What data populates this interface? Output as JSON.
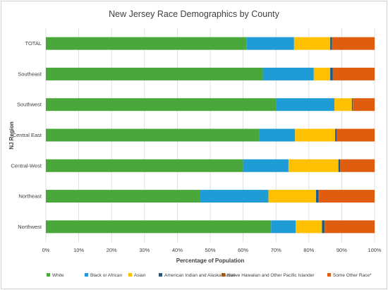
{
  "chart_data": {
    "type": "bar",
    "orientation": "horizontal",
    "stacked": true,
    "title": "New Jersey Race Demographics by County",
    "xlabel": "Percentage of Population",
    "ylabel": "NJ Region",
    "xlim": [
      0,
      100
    ],
    "x_ticks": [
      "0%",
      "10%",
      "20%",
      "30%",
      "40%",
      "50%",
      "60%",
      "70%",
      "80%",
      "90%",
      "100%"
    ],
    "grid": "vertical",
    "legend_position": "bottom",
    "categories": [
      "TOTAL",
      "Southeast",
      "Southwest",
      "Central East",
      "Central-West",
      "Northeast",
      "Northwest"
    ],
    "series": [
      {
        "name": "White",
        "color": "#4aa83b",
        "values": [
          61,
          66,
          70,
          65,
          60,
          47,
          68.5
        ]
      },
      {
        "name": "Black or African",
        "color": "#1f9bd6",
        "values": [
          14.5,
          15.5,
          17.8,
          10.8,
          13.8,
          20.7,
          7.5
        ]
      },
      {
        "name": "Asian",
        "color": "#ffc000",
        "values": [
          11,
          5,
          5.3,
          12.2,
          15.2,
          14.5,
          8
        ]
      },
      {
        "name": "American Indian and Alaska Native",
        "color": "#1f5c8b",
        "values": [
          0.5,
          0.8,
          0.3,
          0.5,
          0.5,
          0.8,
          0.8
        ]
      },
      {
        "name": "Native Hawaiian and Other Pacific Islander",
        "color": "#9c5a1a",
        "values": [
          0.2,
          0.2,
          0.1,
          0.1,
          0.1,
          0.1,
          0.1
        ]
      },
      {
        "name": "Some Other Race*",
        "color": "#e05c0f",
        "values": [
          12.8,
          12.5,
          6.5,
          11.4,
          10.4,
          16.9,
          15.1
        ]
      }
    ]
  }
}
